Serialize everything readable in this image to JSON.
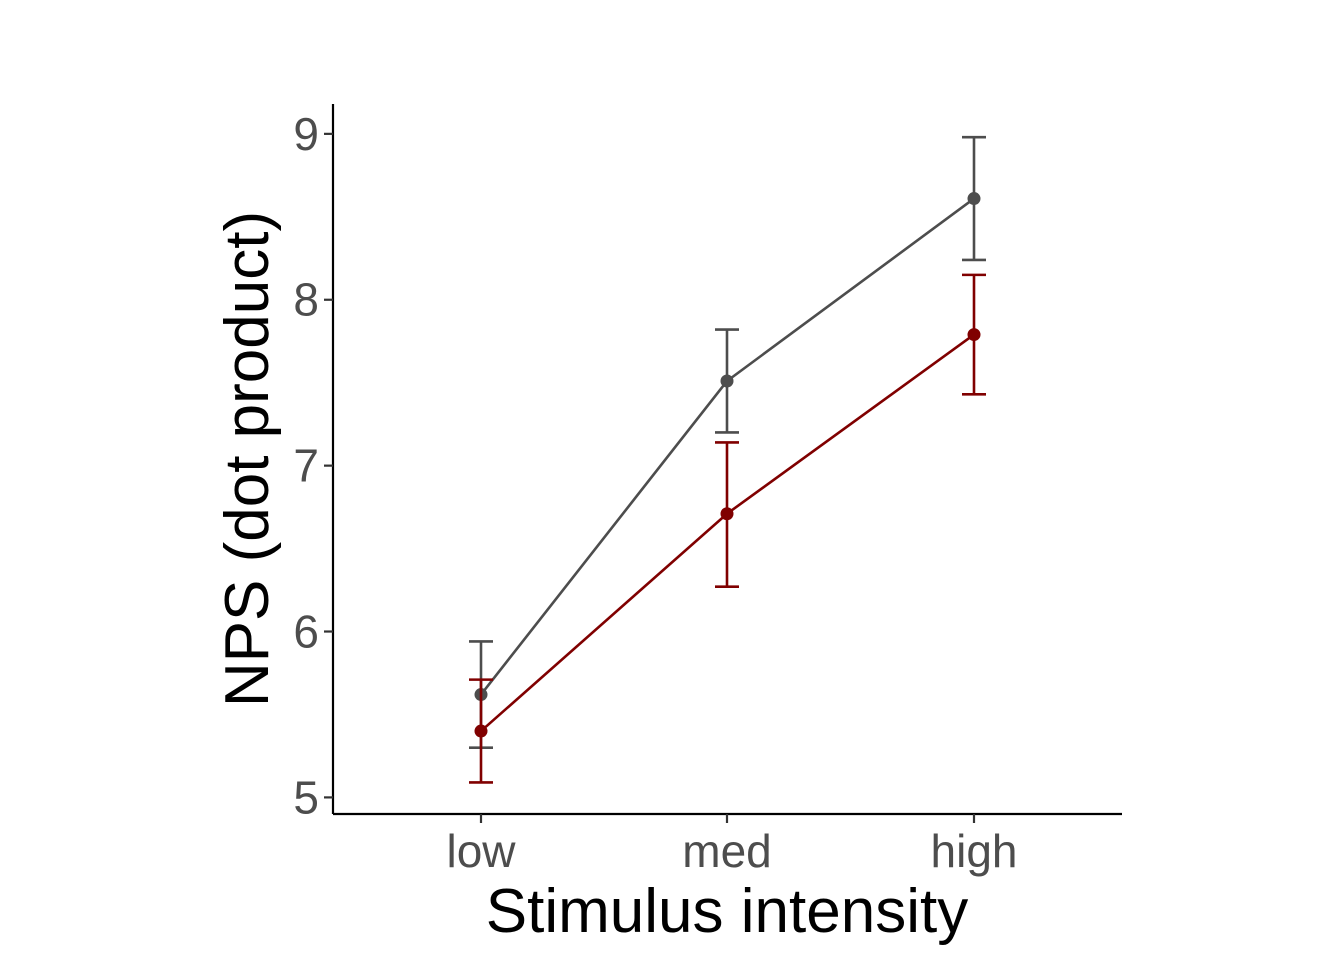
{
  "chart_data": {
    "type": "line",
    "title": "",
    "xlabel": "Stimulus intensity",
    "ylabel": "NPS (dot product)",
    "categories": [
      "low",
      "med",
      "high"
    ],
    "ylim": [
      4.9,
      9.18
    ],
    "yticks": [
      5,
      6,
      7,
      8,
      9
    ],
    "grid": false,
    "legend": "none",
    "series": [
      {
        "color": "#4d4d4d",
        "values": [
          5.62,
          7.51,
          8.61
        ],
        "err_low": [
          5.3,
          7.2,
          8.24
        ],
        "err_high": [
          5.94,
          7.82,
          8.98
        ]
      },
      {
        "color": "#800000",
        "values": [
          5.4,
          6.71,
          7.79
        ],
        "err_low": [
          5.09,
          6.27,
          7.43
        ],
        "err_high": [
          5.71,
          7.14,
          8.15
        ]
      }
    ]
  }
}
